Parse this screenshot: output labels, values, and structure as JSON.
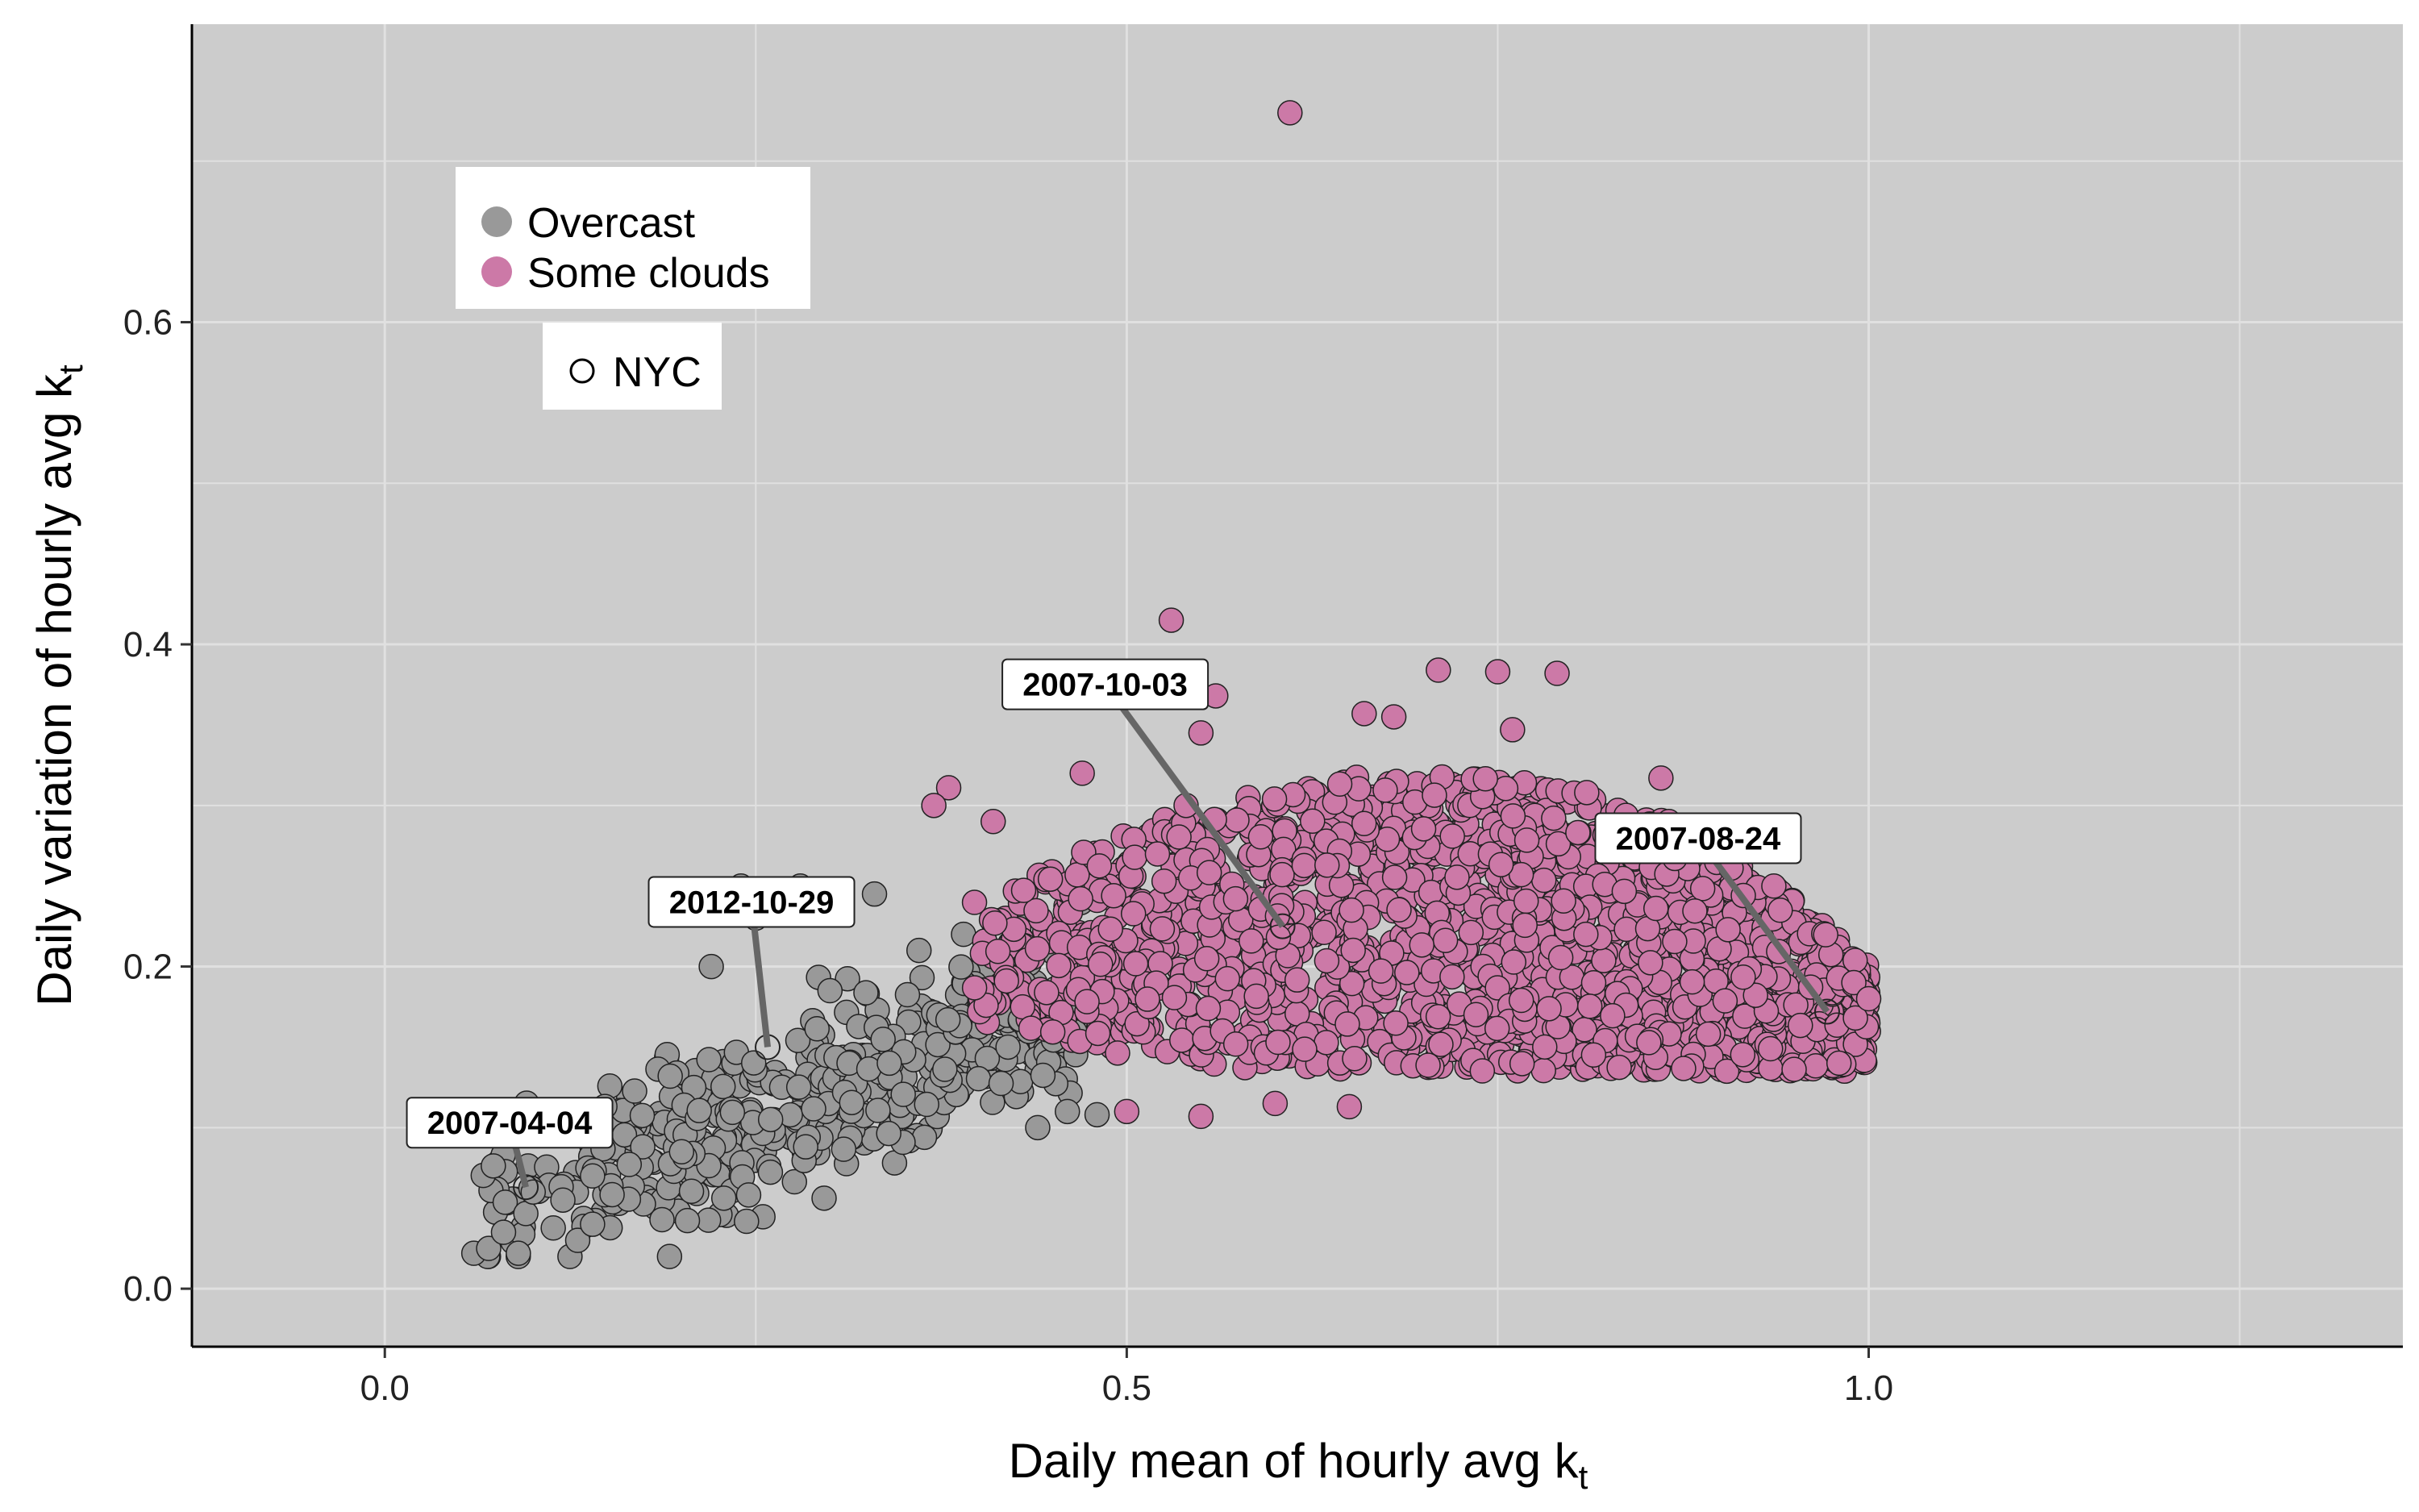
{
  "chart_data": {
    "type": "scatter",
    "title": "",
    "xlabel": "Daily mean of hourly avg k",
    "xlabel_sub": "t",
    "ylabel": "Daily variation of hourly avg k",
    "ylabel_sub": "t",
    "xlim": [
      -0.13,
      1.36
    ],
    "ylim": [
      -0.036,
      0.785
    ],
    "x_ticks": [
      0.0,
      0.5,
      1.0
    ],
    "x_tick_labels": [
      "0.0",
      "0.5",
      "1.0"
    ],
    "x_minor_gridlines": [
      0.25,
      0.75,
      1.25
    ],
    "y_ticks": [
      0.0,
      0.2,
      0.4,
      0.6
    ],
    "y_tick_labels": [
      "0.0",
      "0.2",
      "0.4",
      "0.6"
    ],
    "y_minor_gridlines": [
      0.1,
      0.3,
      0.5,
      0.7
    ],
    "grid": true,
    "background": "#cccccc",
    "gridline_color": "#e0e0e0",
    "legend": {
      "placement": "top-left",
      "entries": [
        {
          "label": "Overcast",
          "color": "#999999"
        },
        {
          "label": "Some clouds",
          "color": "#cc79a7"
        }
      ],
      "shape_entry": {
        "label": "NYC",
        "shape": "open-circle"
      }
    },
    "series": [
      {
        "name": "Overcast",
        "color": "#999999",
        "region": {
          "x_min": 0.06,
          "x_max": 0.47,
          "y_center_slope": 0.345,
          "y_center_intercept": 0.02,
          "y_spread": 0.05,
          "count": 520
        },
        "points": [
          [
            0.06,
            0.022
          ],
          [
            0.07,
            0.025
          ],
          [
            0.08,
            0.035
          ],
          [
            0.09,
            0.022
          ],
          [
            0.1,
            0.06
          ],
          [
            0.12,
            0.055
          ],
          [
            0.14,
            0.07
          ],
          [
            0.13,
            0.03
          ],
          [
            0.22,
            0.2
          ],
          [
            0.24,
            0.25
          ],
          [
            0.25,
            0.23
          ],
          [
            0.28,
            0.25
          ],
          [
            0.29,
            0.24
          ],
          [
            0.33,
            0.245
          ],
          [
            0.3,
            0.185
          ],
          [
            0.46,
            0.11
          ],
          [
            0.44,
            0.1
          ],
          [
            0.48,
            0.108
          ],
          [
            0.39,
            0.22
          ],
          [
            0.36,
            0.21
          ],
          [
            0.26,
            0.105
          ],
          [
            0.14,
            0.04
          ],
          [
            0.2,
            0.085
          ],
          [
            0.34,
            0.14
          ],
          [
            0.42,
            0.15
          ]
        ]
      },
      {
        "name": "Some clouds",
        "color": "#cc79a7",
        "region": {
          "x_min": 0.39,
          "x_max": 1.0,
          "y_min": 0.135,
          "y_max": 0.3,
          "count": 1900
        },
        "points": [
          [
            0.61,
            0.73
          ],
          [
            0.53,
            0.415
          ],
          [
            0.56,
            0.368
          ],
          [
            0.75,
            0.383
          ],
          [
            0.79,
            0.382
          ],
          [
            0.71,
            0.384
          ],
          [
            0.43,
            0.37
          ],
          [
            0.76,
            0.347
          ],
          [
            0.55,
            0.345
          ],
          [
            0.38,
            0.311
          ],
          [
            0.37,
            0.3
          ],
          [
            0.47,
            0.32
          ],
          [
            0.41,
            0.29
          ],
          [
            0.54,
            0.3
          ],
          [
            0.55,
            0.107
          ],
          [
            0.6,
            0.115
          ],
          [
            0.65,
            0.113
          ],
          [
            0.5,
            0.11
          ],
          [
            0.86,
            0.317
          ],
          [
            0.81,
            0.308
          ],
          [
            0.99,
            0.19
          ],
          [
            1.0,
            0.18
          ],
          [
            0.98,
            0.14
          ],
          [
            0.66,
            0.357
          ],
          [
            0.68,
            0.355
          ]
        ]
      }
    ],
    "nyc_points": [
      {
        "label": "2007-04-04",
        "x": 0.095,
        "y": 0.063
      },
      {
        "label": "2012-10-29",
        "x": 0.258,
        "y": 0.15
      },
      {
        "label": "2007-10-03",
        "x": 0.605,
        "y": 0.225
      },
      {
        "label": "2007-08-24",
        "x": 0.972,
        "y": 0.172
      }
    ],
    "annotations": [
      {
        "text": "2007-04-04",
        "x": 0.095,
        "y": 0.063
      },
      {
        "text": "2012-10-29",
        "x": 0.258,
        "y": 0.15
      },
      {
        "text": "2007-10-03",
        "x": 0.605,
        "y": 0.225
      },
      {
        "text": "2007-08-24",
        "x": 0.972,
        "y": 0.172
      }
    ]
  }
}
